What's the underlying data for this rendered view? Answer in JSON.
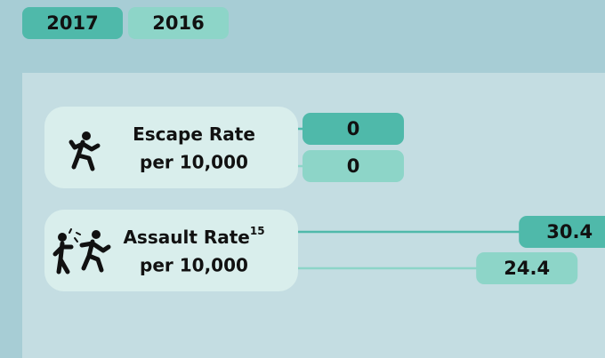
{
  "chart_data": {
    "type": "bar",
    "categories": [
      "Escape Rate",
      "Assault Rate"
    ],
    "category_superscripts": [
      null,
      "15"
    ],
    "unit_label": "per 10,000",
    "series": [
      {
        "name": "2017",
        "color": "#4fb9aa",
        "values": [
          0,
          30.4
        ]
      },
      {
        "name": "2016",
        "color": "#8dd5c8",
        "values": [
          0,
          24.4
        ]
      }
    ]
  }
}
